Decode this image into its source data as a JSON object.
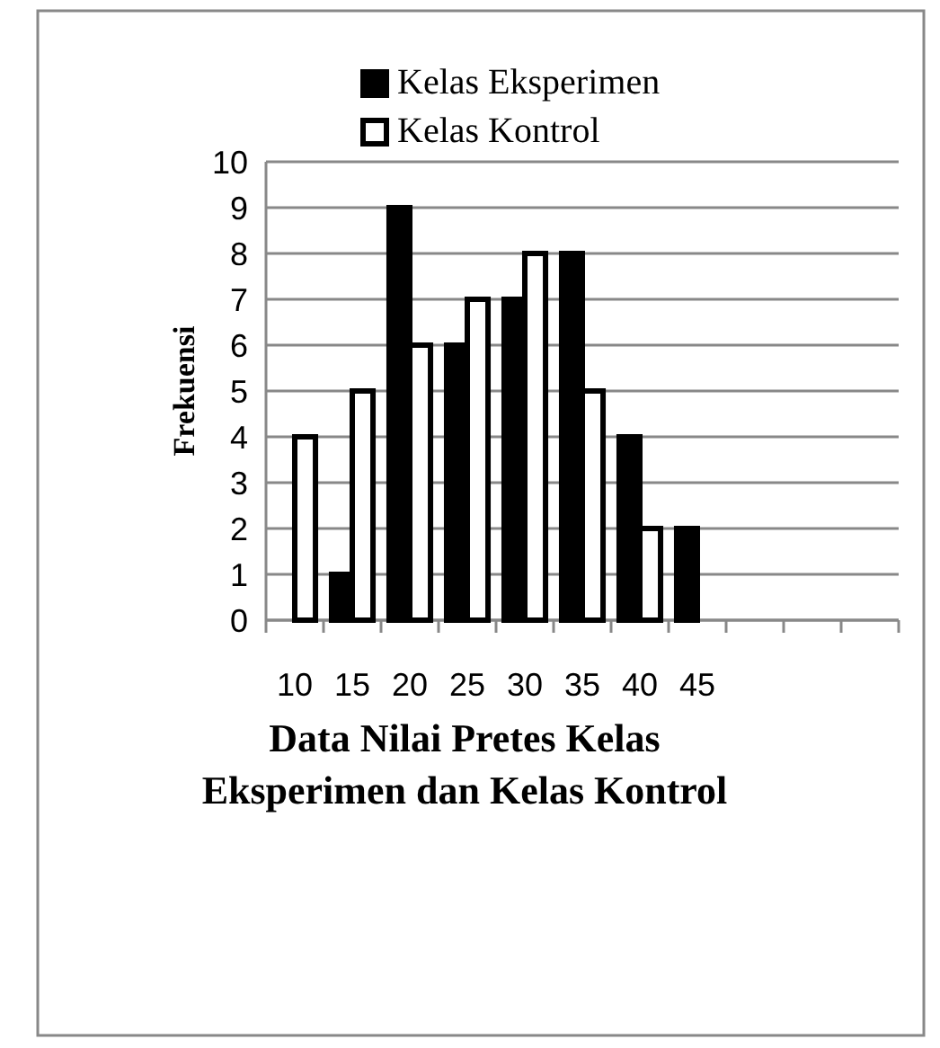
{
  "chart_data": {
    "type": "bar",
    "title": "Data Nilai Pretes Kelas Eksperimen dan Kelas Kontrol",
    "ylabel": "Frekuensi",
    "categories": [
      "10",
      "15",
      "20",
      "25",
      "30",
      "35",
      "40",
      "45",
      null,
      null,
      null
    ],
    "series": [
      {
        "name": "Kelas Eksperimen",
        "color": "#000000",
        "values": [
          0,
          1,
          9,
          6,
          7,
          8,
          4,
          2,
          null,
          null,
          null
        ]
      },
      {
        "name": "Kelas Kontrol",
        "color": "#ffffff",
        "values": [
          4,
          5,
          6,
          7,
          8,
          5,
          2,
          0,
          null,
          null,
          null
        ]
      }
    ],
    "ylim": [
      0,
      10
    ],
    "yticks": [
      0,
      1,
      2,
      3,
      4,
      5,
      6,
      7,
      8,
      9,
      10
    ],
    "grid": "y",
    "legend": "top"
  }
}
